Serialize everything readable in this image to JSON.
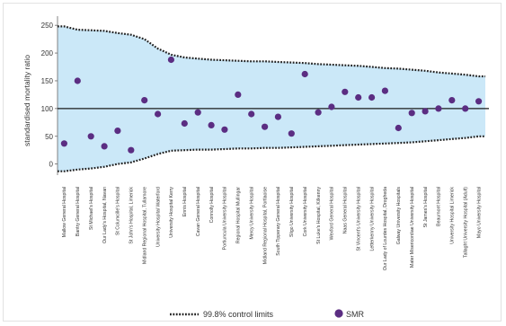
{
  "chart_data": {
    "type": "scatter",
    "ylabel": "standardised mortality ratio",
    "ylim": [
      -20,
      260
    ],
    "yticks": [
      0,
      50,
      100,
      150,
      200,
      250
    ],
    "reference_line": 100,
    "categories": [
      "Mallow General Hospital",
      "Bantry General Hospital",
      "St Michael's Hospital",
      "Our Lady's Hospital, Navan",
      "St Columcille's Hospital",
      "St John's Hospital, Limerick",
      "Midland Regional Hospital, Tullamore",
      "University Hospital Waterford",
      "University Hospital Kerry",
      "Ennis Hospital",
      "Cavan General Hospital",
      "Connolly Hospital",
      "Portiuncula University Hospital",
      "Regional Hospital Mullingar",
      "Mercy University Hospital",
      "Midland Regional Hospital, Portlaoise",
      "South Tipperary General Hospital",
      "Sligo University Hospital",
      "Cork University Hospital",
      "St Luke's Hospital, Kilkenny",
      "Wexford General Hospital",
      "Naas General Hospital",
      "St Vincent's University Hospital",
      "Letterkenny University Hospital",
      "Our Lady of Lourdes Hospital, Drogheda",
      "Galway University Hospitals",
      "Mater Misericordiae University Hospital",
      "St James's Hospital",
      "Beaumont Hospital",
      "University Hospital Limerick",
      "Tallaght University Hospital (Adult)",
      "Mayo University Hospital"
    ],
    "series": [
      {
        "name": "SMR",
        "values": [
          37,
          150,
          50,
          32,
          60,
          25,
          115,
          90,
          188,
          73,
          93,
          70,
          62,
          125,
          90,
          67,
          85,
          55,
          162,
          93,
          103,
          130,
          120,
          120,
          132,
          65,
          92,
          95,
          100,
          115,
          100,
          113
        ],
        "color": "#5b2d82"
      }
    ],
    "control_limits": {
      "name": "99.8% control limits",
      "upper": [
        248,
        242,
        241,
        240,
        236,
        233,
        225,
        208,
        197,
        192,
        190,
        188,
        187,
        186,
        185,
        185,
        184,
        183,
        182,
        180,
        179,
        178,
        177,
        175,
        173,
        172,
        170,
        168,
        165,
        163,
        161,
        158
      ],
      "lower": [
        -13,
        -10,
        -8,
        -5,
        0,
        3,
        10,
        18,
        24,
        25,
        26,
        26,
        27,
        28,
        28,
        29,
        29,
        30,
        31,
        32,
        33,
        34,
        35,
        36,
        37,
        38,
        39,
        41,
        43,
        45,
        47,
        50
      ]
    },
    "band_color": "#cbe8f8",
    "grid": false,
    "legend": {
      "placement": "bottom",
      "entries": [
        "99.8% control limits",
        "SMR"
      ]
    }
  }
}
